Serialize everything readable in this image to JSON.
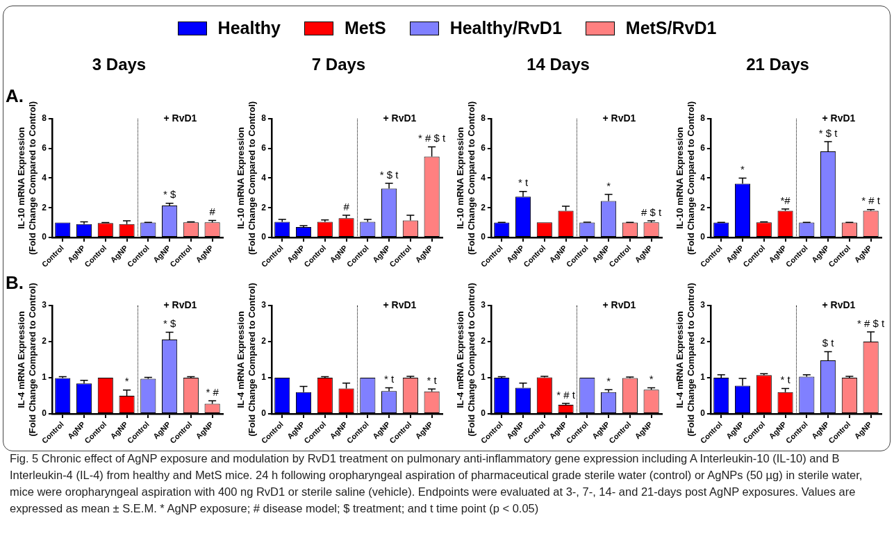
{
  "chart_data": [
    {
      "type": "bar",
      "title": "3 Days",
      "ylabel": "IL-10 mRNA Expression\n(Fold Change Compared to Control)",
      "legend": "top",
      "grid": false,
      "annotations": [
        "+ RvD1",
        "A.",
        "Fig. 5  Chronic effect of AgNP exposure and modulation by RvD1 treatment on pulmonary anti-inflammatory gene expression including A Interleukin-10 (IL-10) and B Interleukin-4 (IL-4) from healthy and MetS mice. 24 h following oropharyngeal aspiration of pharmaceutical grade sterile water (control) or AgNPs (50 µg) in sterile water, mice were oropharyngeal aspiration with 400 ng RvD1 or sterile saline (vehicle). Endpoints were evaluated at 3-, 7-, 14- and 21-days post AgNP exposures. Values are expressed as mean ± S.E.M. * AgNP exposure; # disease model; $ treatment; and t time point (p < 0.05)"
      ],
      "categories": [
        "Control",
        "AgNP",
        "Control",
        "AgNP",
        "Control",
        "AgNP",
        "Control",
        "AgNP"
      ],
      "ylim": [
        0,
        8
      ],
      "yticks": [
        0,
        2,
        4,
        6,
        8
      ],
      "series": [
        {
          "name": "Healthy",
          "color": "#0000ff",
          "values": [
            1.0,
            0.9,
            null,
            null,
            null,
            null,
            null,
            null
          ],
          "errors": [
            null,
            [
              0.9,
              1.05
            ],
            null,
            null,
            null,
            null,
            null,
            null
          ]
        },
        {
          "name": "MetS",
          "color": "#ff0000",
          "values": [
            null,
            null,
            0.97,
            0.9,
            null,
            null,
            null,
            null
          ],
          "errors": [
            null,
            null,
            [
              0.97,
              1.0
            ],
            [
              0.9,
              1.12
            ],
            null,
            null,
            null,
            null
          ]
        },
        {
          "name": "Healthy/RvD1",
          "color": "#8080ff",
          "values": [
            null,
            null,
            null,
            null,
            1.0,
            2.15,
            null,
            null
          ],
          "errors": [
            null,
            null,
            null,
            null,
            [
              1.0,
              1.02
            ],
            [
              2.15,
              2.3
            ],
            null,
            null
          ],
          "value_labels": [
            null,
            null,
            null,
            null,
            null,
            "* $",
            null,
            null
          ]
        },
        {
          "name": "MetS/RvD1",
          "color": "#ff8080",
          "values": [
            null,
            null,
            null,
            null,
            null,
            null,
            1.02,
            1.02
          ],
          "errors": [
            null,
            null,
            null,
            null,
            null,
            null,
            [
              1.02,
              1.05
            ],
            [
              1.02,
              1.15
            ]
          ],
          "value_labels": [
            null,
            null,
            null,
            null,
            null,
            null,
            null,
            "#"
          ]
        }
      ]
    },
    {
      "type": "bar",
      "title": "7 Days",
      "ylabel": "IL-10 mRNA Expression\n(Fold Change Compared to Control)",
      "grid": false,
      "annotations": [
        "+ RvD1"
      ],
      "categories": [
        "Control",
        "AgNP",
        "Control",
        "AgNP",
        "Control",
        "AgNP",
        "Control",
        "AgNP"
      ],
      "ylim": [
        0,
        8
      ],
      "yticks": [
        0,
        2,
        4,
        6,
        8
      ],
      "series": [
        {
          "color": "#0000ff",
          "values": [
            1.05,
            0.7,
            null,
            null,
            null,
            null,
            null,
            null
          ],
          "errors": [
            [
              1.05,
              1.22
            ],
            [
              0.7,
              0.8
            ],
            null,
            null,
            null,
            null,
            null,
            null
          ]
        },
        {
          "color": "#ff0000",
          "values": [
            null,
            null,
            1.05,
            1.3,
            null,
            null,
            null,
            null
          ],
          "errors": [
            null,
            null,
            [
              1.05,
              1.18
            ],
            [
              1.3,
              1.5
            ],
            null,
            null,
            null,
            null
          ],
          "value_labels": [
            null,
            null,
            null,
            "#",
            null,
            null,
            null,
            null
          ]
        },
        {
          "color": "#8080ff",
          "values": [
            null,
            null,
            null,
            null,
            1.05,
            3.3,
            null,
            null
          ],
          "errors": [
            null,
            null,
            null,
            null,
            [
              1.05,
              1.22
            ],
            [
              3.3,
              3.65
            ],
            null,
            null
          ],
          "value_labels": [
            null,
            null,
            null,
            null,
            null,
            "* $ t",
            null,
            null
          ]
        },
        {
          "color": "#ff8080",
          "values": [
            null,
            null,
            null,
            null,
            null,
            null,
            1.15,
            5.45
          ],
          "errors": [
            null,
            null,
            null,
            null,
            null,
            null,
            [
              1.15,
              1.5
            ],
            [
              5.45,
              6.1
            ]
          ],
          "value_labels": [
            null,
            null,
            null,
            null,
            null,
            null,
            null,
            "* # $ t"
          ]
        }
      ]
    },
    {
      "type": "bar",
      "title": "14 Days",
      "ylabel": "IL-10 mRNA Expression\n(Fold Change Compared to Control)",
      "grid": false,
      "annotations": [
        "+ RvD1"
      ],
      "categories": [
        "Control",
        "AgNP",
        "Control",
        "AgNP",
        "Control",
        "AgNP",
        "Control",
        "AgNP"
      ],
      "ylim": [
        0,
        8
      ],
      "yticks": [
        0,
        2,
        4,
        6,
        8
      ],
      "series": [
        {
          "color": "#0000ff",
          "values": [
            1.0,
            2.75,
            null,
            null,
            null,
            null,
            null,
            null
          ],
          "errors": [
            [
              1.0,
              1.02
            ],
            [
              2.75,
              3.1
            ],
            null,
            null,
            null,
            null,
            null,
            null
          ],
          "value_labels": [
            null,
            "* t",
            null,
            null,
            null,
            null,
            null,
            null
          ]
        },
        {
          "color": "#ff0000",
          "values": [
            null,
            null,
            1.02,
            1.8,
            null,
            null,
            null,
            null
          ],
          "errors": [
            null,
            null,
            null,
            [
              1.8,
              2.1
            ],
            null,
            null,
            null,
            null
          ]
        },
        {
          "color": "#8080ff",
          "values": [
            null,
            null,
            null,
            null,
            1.0,
            2.45,
            null,
            null
          ],
          "errors": [
            null,
            null,
            null,
            null,
            [
              1.0,
              1.03
            ],
            [
              2.45,
              2.9
            ],
            null,
            null
          ],
          "value_labels": [
            null,
            null,
            null,
            null,
            null,
            "*",
            null,
            null
          ]
        },
        {
          "color": "#ff8080",
          "values": [
            null,
            null,
            null,
            null,
            null,
            null,
            1.0,
            1.02
          ],
          "errors": [
            null,
            null,
            null,
            null,
            null,
            null,
            [
              1.0,
              1.02
            ],
            [
              1.02,
              1.12
            ]
          ],
          "value_labels": [
            null,
            null,
            null,
            null,
            null,
            null,
            null,
            "# $ t"
          ]
        }
      ]
    },
    {
      "type": "bar",
      "title": "21 Days",
      "ylabel": "IL-10 mRNA Expression\n(Fold Change Compared to Control)",
      "grid": false,
      "annotations": [
        "+ RvD1"
      ],
      "categories": [
        "Control",
        "AgNP",
        "Control",
        "AgNP",
        "Control",
        "AgNP",
        "Control",
        "AgNP"
      ],
      "ylim": [
        0,
        8
      ],
      "yticks": [
        0,
        2,
        4,
        6,
        8
      ],
      "series": [
        {
          "color": "#0000ff",
          "values": [
            1.0,
            3.62,
            null,
            null,
            null,
            null,
            null,
            null
          ],
          "errors": [
            [
              1.0,
              1.02
            ],
            [
              3.62,
              4.0
            ],
            null,
            null,
            null,
            null,
            null,
            null
          ],
          "value_labels": [
            null,
            "*",
            null,
            null,
            null,
            null,
            null,
            null
          ]
        },
        {
          "color": "#ff0000",
          "values": [
            null,
            null,
            1.02,
            1.8,
            null,
            null,
            null,
            null
          ],
          "errors": [
            null,
            null,
            [
              1.02,
              1.05
            ],
            [
              1.8,
              1.92
            ],
            null,
            null,
            null,
            null
          ],
          "value_labels": [
            null,
            null,
            null,
            "*#",
            null,
            null,
            null,
            null
          ]
        },
        {
          "color": "#8080ff",
          "values": [
            null,
            null,
            null,
            null,
            1.0,
            5.8,
            null,
            null
          ],
          "errors": [
            null,
            null,
            null,
            null,
            [
              1.0,
              1.02
            ],
            [
              5.8,
              6.45
            ],
            null,
            null
          ],
          "value_labels": [
            null,
            null,
            null,
            null,
            null,
            "* $ t",
            null,
            null
          ]
        },
        {
          "color": "#ff8080",
          "values": [
            null,
            null,
            null,
            null,
            null,
            null,
            1.0,
            1.8
          ],
          "errors": [
            null,
            null,
            null,
            null,
            null,
            null,
            [
              1.0,
              1.02
            ],
            [
              1.8,
              1.88
            ]
          ],
          "value_labels": [
            null,
            null,
            null,
            null,
            null,
            null,
            null,
            "* # t"
          ]
        }
      ]
    },
    {
      "type": "bar",
      "ylabel": "IL-4 mRNA Expression\n(Fold Change Compared to Control)",
      "grid": false,
      "annotations": [
        "+ RvD1",
        "B."
      ],
      "categories": [
        "Control",
        "AgNP",
        "Control",
        "AgNP",
        "Control",
        "AgNP",
        "Control",
        "AgNP"
      ],
      "ylim": [
        0,
        3
      ],
      "yticks": [
        0,
        1,
        2,
        3
      ],
      "series": [
        {
          "color": "#0000ff",
          "values": [
            0.99,
            0.84,
            null,
            null,
            null,
            null,
            null,
            null
          ],
          "errors": [
            [
              0.99,
              1.03
            ],
            [
              0.84,
              0.93
            ],
            null,
            null,
            null,
            null,
            null,
            null
          ]
        },
        {
          "color": "#ff0000",
          "values": [
            null,
            null,
            1.0,
            0.5,
            null,
            null,
            null,
            null
          ],
          "errors": [
            null,
            null,
            null,
            [
              0.5,
              0.66
            ],
            null,
            null,
            null,
            null
          ],
          "value_labels": [
            null,
            null,
            null,
            "*",
            null,
            null,
            null,
            null
          ]
        },
        {
          "color": "#8080ff",
          "values": [
            null,
            null,
            null,
            null,
            0.97,
            2.06,
            null,
            null
          ],
          "errors": [
            null,
            null,
            null,
            null,
            [
              0.97,
              1.01
            ],
            [
              2.06,
              2.26
            ],
            null,
            null
          ],
          "value_labels": [
            null,
            null,
            null,
            null,
            null,
            "* $",
            null,
            null
          ]
        },
        {
          "color": "#ff8080",
          "values": [
            null,
            null,
            null,
            null,
            null,
            null,
            1.0,
            0.28
          ],
          "errors": [
            null,
            null,
            null,
            null,
            null,
            null,
            [
              1.0,
              1.03
            ],
            [
              0.28,
              0.36
            ]
          ],
          "value_labels": [
            null,
            null,
            null,
            null,
            null,
            null,
            null,
            "* #"
          ]
        }
      ]
    },
    {
      "type": "bar",
      "ylabel": "IL-4 mRNA Expression\n(Fold Change Compared to Control)",
      "grid": false,
      "annotations": [
        "+ RvD1"
      ],
      "categories": [
        "Control",
        "AgNP",
        "Control",
        "AgNP",
        "Control",
        "AgNP",
        "Control",
        "AgNP"
      ],
      "ylim": [
        0,
        3
      ],
      "yticks": [
        0,
        1,
        2,
        3
      ],
      "series": [
        {
          "color": "#0000ff",
          "values": [
            1.0,
            0.6,
            null,
            null,
            null,
            null,
            null,
            null
          ],
          "errors": [
            null,
            [
              0.6,
              0.76
            ],
            null,
            null,
            null,
            null,
            null,
            null
          ]
        },
        {
          "color": "#ff0000",
          "values": [
            null,
            null,
            1.0,
            0.7,
            null,
            null,
            null,
            null
          ],
          "errors": [
            null,
            null,
            [
              1.0,
              1.03
            ],
            [
              0.7,
              0.85
            ],
            null,
            null,
            null,
            null
          ]
        },
        {
          "color": "#8080ff",
          "values": [
            null,
            null,
            null,
            null,
            1.0,
            0.63,
            null,
            null
          ],
          "errors": [
            null,
            null,
            null,
            null,
            null,
            [
              0.63,
              0.72
            ],
            null,
            null
          ],
          "value_labels": [
            null,
            null,
            null,
            null,
            null,
            "* t",
            null,
            null
          ]
        },
        {
          "color": "#ff8080",
          "values": [
            null,
            null,
            null,
            null,
            null,
            null,
            1.0,
            0.62
          ],
          "errors": [
            null,
            null,
            null,
            null,
            null,
            null,
            [
              1.0,
              1.04
            ],
            [
              0.62,
              0.69
            ]
          ],
          "value_labels": [
            null,
            null,
            null,
            null,
            null,
            null,
            null,
            "* t"
          ]
        }
      ]
    },
    {
      "type": "bar",
      "ylabel": "IL-4 mRNA Expression\n(Fold Change Compared to Control)",
      "grid": false,
      "annotations": [
        "+ RvD1"
      ],
      "categories": [
        "Control",
        "AgNP",
        "Control",
        "AgNP",
        "Control",
        "AgNP",
        "Control",
        "AgNP"
      ],
      "ylim": [
        0,
        3
      ],
      "yticks": [
        0,
        1,
        2,
        3
      ],
      "series": [
        {
          "color": "#0000ff",
          "values": [
            1.0,
            0.72,
            null,
            null,
            null,
            null,
            null,
            null
          ],
          "errors": [
            [
              1.0,
              1.03
            ],
            [
              0.72,
              0.85
            ],
            null,
            null,
            null,
            null,
            null,
            null
          ]
        },
        {
          "color": "#ff0000",
          "values": [
            null,
            null,
            1.01,
            0.25,
            null,
            null,
            null,
            null
          ],
          "errors": [
            null,
            null,
            [
              1.01,
              1.04
            ],
            [
              0.25,
              0.29
            ],
            null,
            null,
            null,
            null
          ],
          "value_labels": [
            null,
            null,
            null,
            "* # t",
            null,
            null,
            null,
            null
          ]
        },
        {
          "color": "#8080ff",
          "values": [
            null,
            null,
            null,
            null,
            1.0,
            0.6,
            null,
            null
          ],
          "errors": [
            null,
            null,
            null,
            null,
            null,
            [
              0.6,
              0.67
            ],
            null,
            null
          ],
          "value_labels": [
            null,
            null,
            null,
            null,
            null,
            "*",
            null,
            null
          ]
        },
        {
          "color": "#ff8080",
          "values": [
            null,
            null,
            null,
            null,
            null,
            null,
            0.99,
            0.67
          ],
          "errors": [
            null,
            null,
            null,
            null,
            null,
            null,
            [
              0.99,
              1.02
            ],
            [
              0.67,
              0.72
            ]
          ],
          "value_labels": [
            null,
            null,
            null,
            null,
            null,
            null,
            null,
            "*"
          ]
        }
      ]
    },
    {
      "type": "bar",
      "ylabel": "IL-4 mRNA Expression\n(Fold Change Compared to Control)",
      "grid": false,
      "annotations": [
        "+ RvD1"
      ],
      "categories": [
        "Control",
        "AgNP",
        "Control",
        "AgNP",
        "Control",
        "AgNP",
        "Control",
        "AgNP"
      ],
      "ylim": [
        0,
        3
      ],
      "yticks": [
        0,
        1,
        2,
        3
      ],
      "series": [
        {
          "color": "#0000ff",
          "values": [
            1.0,
            0.78,
            null,
            null,
            null,
            null,
            null,
            null
          ],
          "errors": [
            [
              1.0,
              1.08
            ],
            [
              0.78,
              0.98
            ],
            null,
            null,
            null,
            null,
            null,
            null
          ]
        },
        {
          "color": "#ff0000",
          "values": [
            null,
            null,
            1.07,
            0.6,
            null,
            null,
            null,
            null
          ],
          "errors": [
            null,
            null,
            [
              1.07,
              1.11
            ],
            [
              0.6,
              0.7
            ],
            null,
            null,
            null,
            null
          ],
          "value_labels": [
            null,
            null,
            null,
            "* t",
            null,
            null,
            null,
            null
          ]
        },
        {
          "color": "#8080ff",
          "values": [
            null,
            null,
            null,
            null,
            1.03,
            1.48,
            null,
            null
          ],
          "errors": [
            null,
            null,
            null,
            null,
            [
              1.03,
              1.08
            ],
            [
              1.48,
              1.72
            ],
            null,
            null
          ],
          "value_labels": [
            null,
            null,
            null,
            null,
            null,
            "$ t",
            null,
            null
          ]
        },
        {
          "color": "#ff8080",
          "values": [
            null,
            null,
            null,
            null,
            null,
            null,
            1.0,
            2.0
          ],
          "errors": [
            null,
            null,
            null,
            null,
            null,
            null,
            [
              1.0,
              1.04
            ],
            [
              2.0,
              2.27
            ]
          ],
          "value_labels": [
            null,
            null,
            null,
            null,
            null,
            null,
            null,
            "* # $ t"
          ]
        }
      ]
    }
  ]
}
